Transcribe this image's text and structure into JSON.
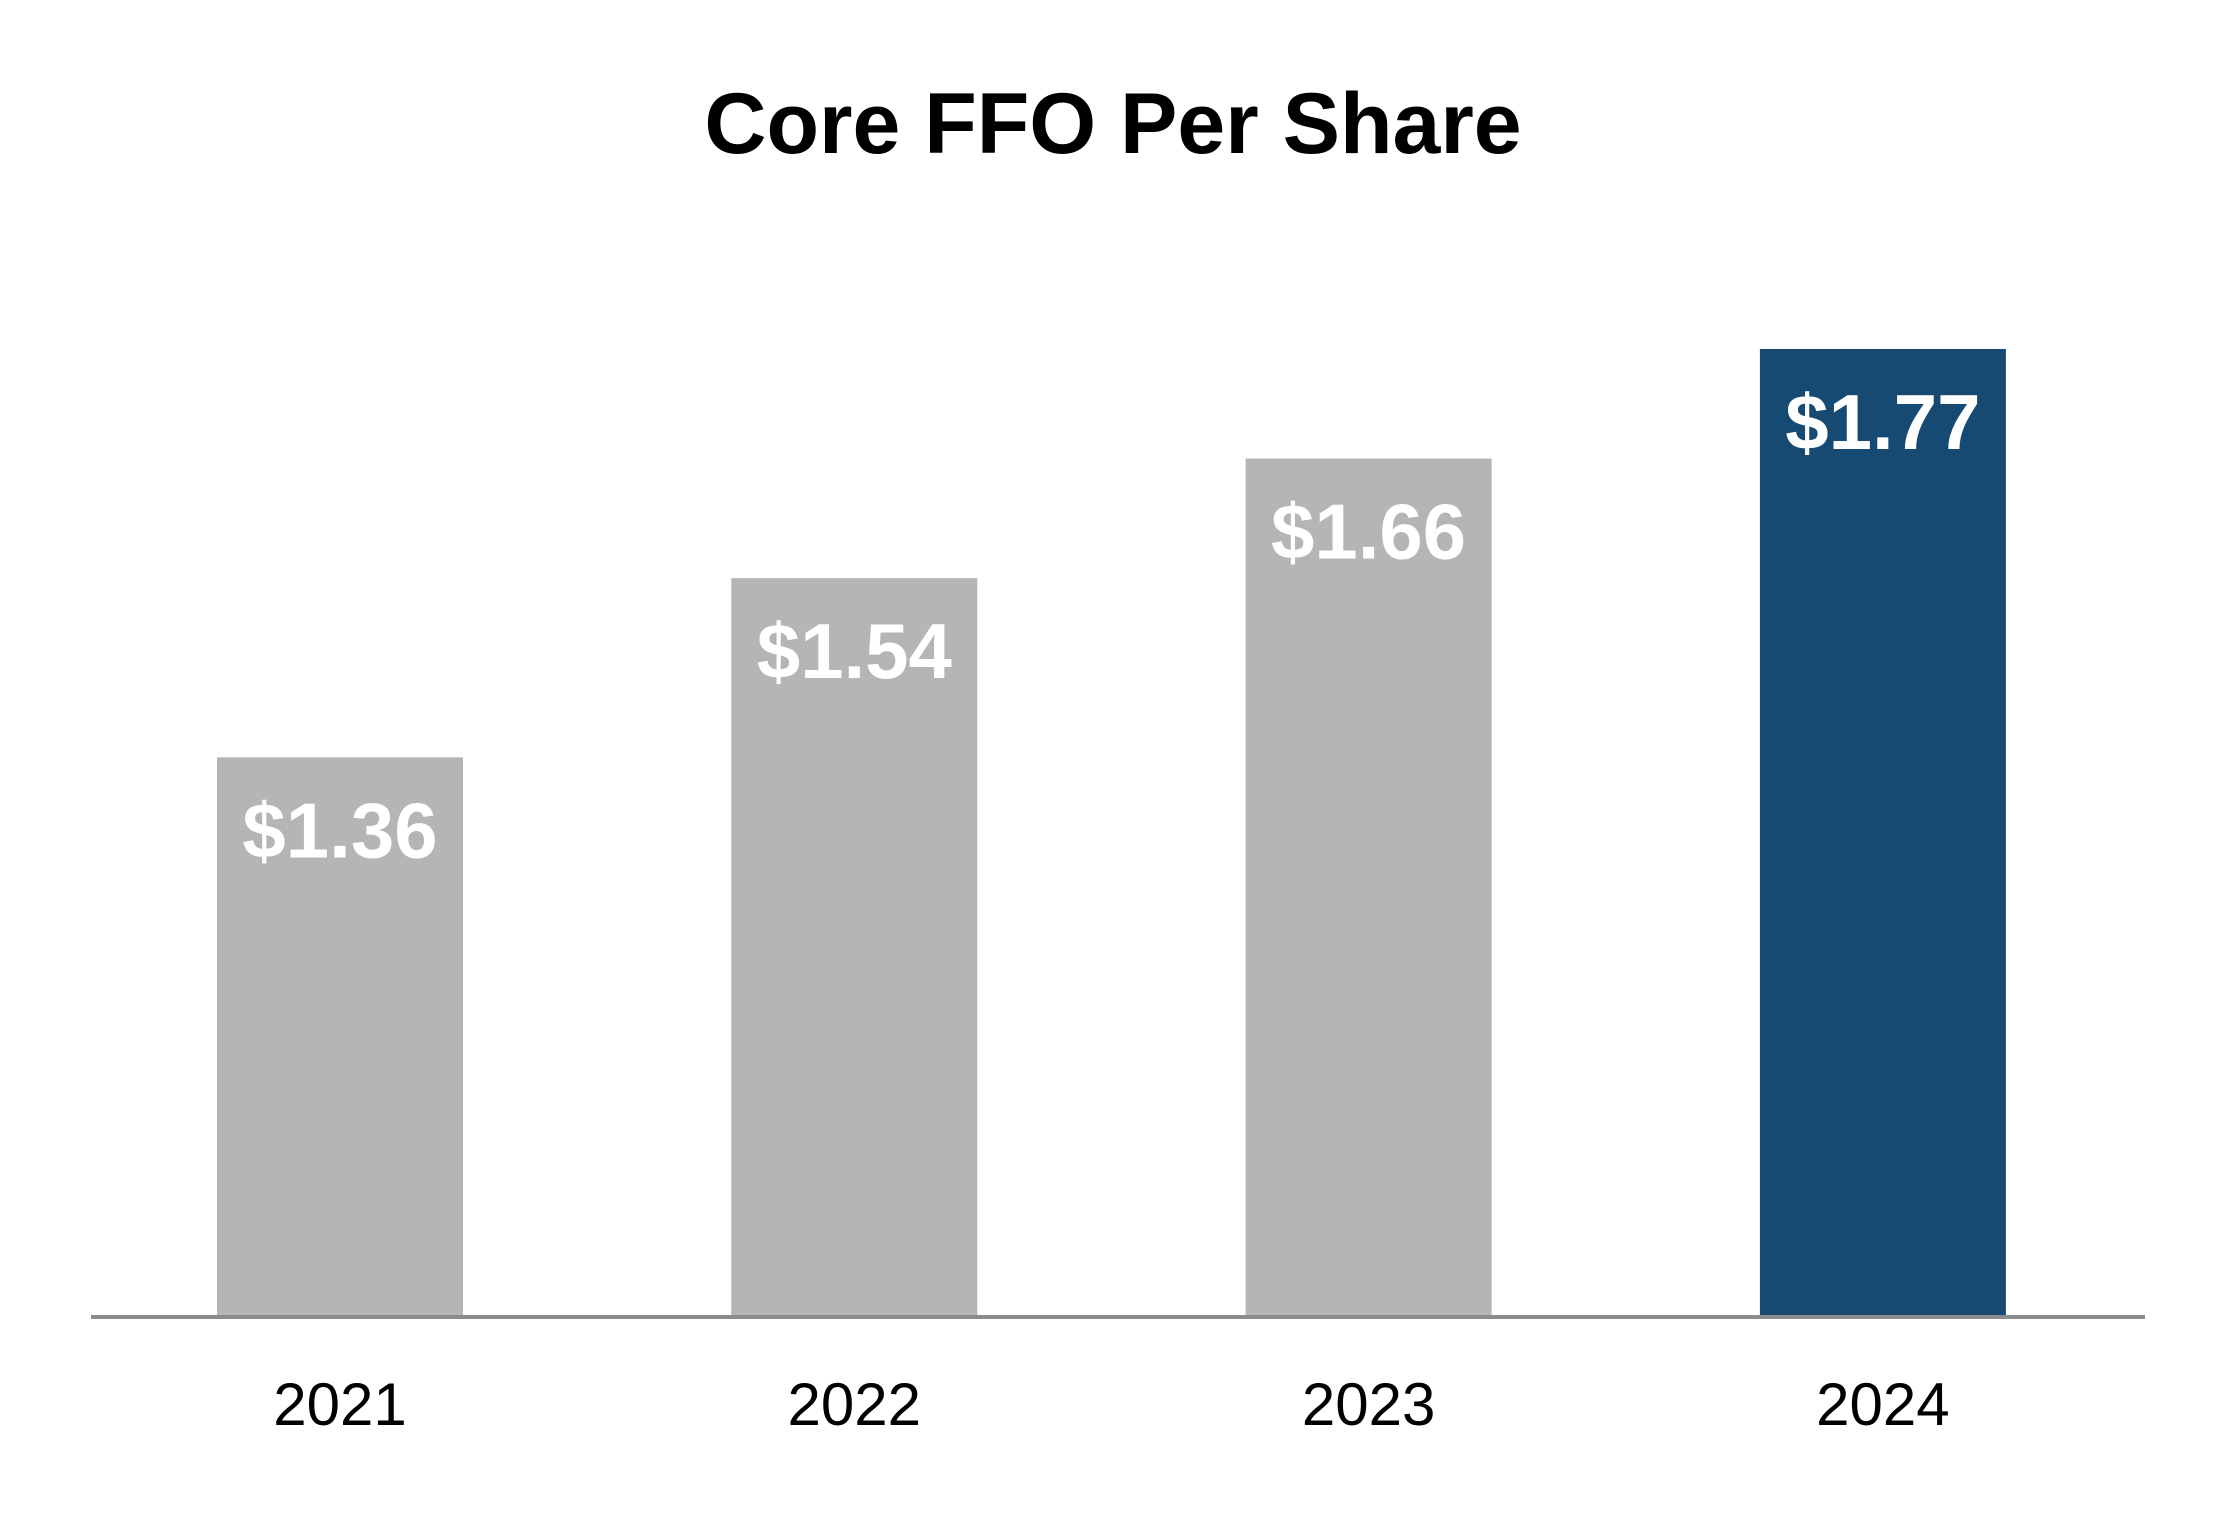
{
  "chart_data": {
    "type": "bar",
    "title": "Core FFO Per Share",
    "categories": [
      "2021",
      "2022",
      "2023",
      "2024"
    ],
    "values": [
      1.36,
      1.54,
      1.66,
      1.77
    ],
    "value_labels": [
      "$1.36",
      "$1.54",
      "$1.66",
      "$1.77"
    ],
    "xlabel": "",
    "ylabel": "",
    "ylim": [
      0.8,
      1.77
    ],
    "grid": false,
    "legend": "none",
    "bar_colors": [
      "#b5b5b5",
      "#b5b5b5",
      "#b5b5b5",
      "#174a73"
    ],
    "label_color": "#ffffff",
    "axis_color": "#8c8c8c",
    "text_color": "#000000"
  }
}
